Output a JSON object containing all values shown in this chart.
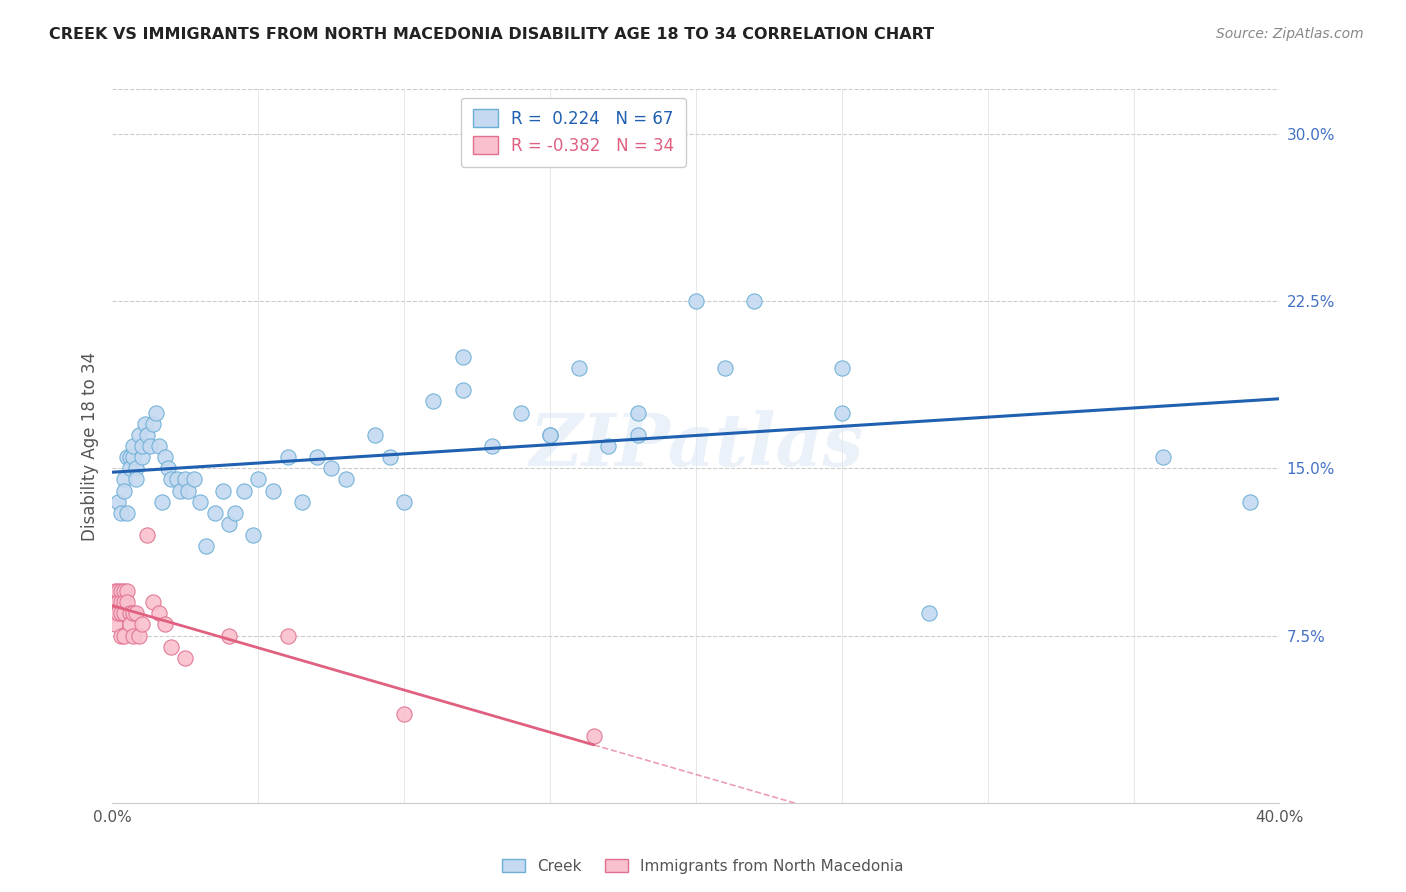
{
  "title": "CREEK VS IMMIGRANTS FROM NORTH MACEDONIA DISABILITY AGE 18 TO 34 CORRELATION CHART",
  "source": "Source: ZipAtlas.com",
  "ylabel": "Disability Age 18 to 34",
  "xlim": [
    0.0,
    0.4
  ],
  "ylim": [
    0.0,
    0.32
  ],
  "yticks_right": [
    0.075,
    0.15,
    0.225,
    0.3
  ],
  "ytick_right_labels": [
    "7.5%",
    "15.0%",
    "22.5%",
    "30.0%"
  ],
  "legend_creek_R": "0.224",
  "legend_creek_N": "67",
  "legend_nm_R": "-0.382",
  "legend_nm_N": "34",
  "creek_color": "#c5d9f0",
  "creek_edge": "#6baed6",
  "nm_color": "#f9c0ce",
  "nm_edge": "#e07090",
  "creek_line_color": "#2060b0",
  "nm_line_color": "#e06080",
  "watermark": "ZIPatlas",
  "creek_x": [
    0.002,
    0.003,
    0.004,
    0.004,
    0.005,
    0.005,
    0.006,
    0.006,
    0.007,
    0.007,
    0.008,
    0.008,
    0.009,
    0.01,
    0.01,
    0.011,
    0.012,
    0.013,
    0.014,
    0.015,
    0.016,
    0.017,
    0.018,
    0.019,
    0.02,
    0.022,
    0.023,
    0.025,
    0.026,
    0.028,
    0.03,
    0.032,
    0.035,
    0.038,
    0.04,
    0.042,
    0.045,
    0.048,
    0.05,
    0.055,
    0.06,
    0.065,
    0.07,
    0.075,
    0.08,
    0.09,
    0.095,
    0.1,
    0.11,
    0.12,
    0.13,
    0.14,
    0.15,
    0.16,
    0.17,
    0.18,
    0.2,
    0.22,
    0.25,
    0.28,
    0.12,
    0.15,
    0.18,
    0.21,
    0.25,
    0.36,
    0.39
  ],
  "creek_y": [
    0.135,
    0.13,
    0.145,
    0.14,
    0.155,
    0.13,
    0.155,
    0.15,
    0.155,
    0.16,
    0.15,
    0.145,
    0.165,
    0.155,
    0.16,
    0.17,
    0.165,
    0.16,
    0.17,
    0.175,
    0.16,
    0.135,
    0.155,
    0.15,
    0.145,
    0.145,
    0.14,
    0.145,
    0.14,
    0.145,
    0.135,
    0.115,
    0.13,
    0.14,
    0.125,
    0.13,
    0.14,
    0.12,
    0.145,
    0.14,
    0.155,
    0.135,
    0.155,
    0.15,
    0.145,
    0.165,
    0.155,
    0.135,
    0.18,
    0.2,
    0.16,
    0.175,
    0.165,
    0.195,
    0.16,
    0.165,
    0.225,
    0.225,
    0.195,
    0.085,
    0.185,
    0.165,
    0.175,
    0.195,
    0.175,
    0.155,
    0.135
  ],
  "nm_x": [
    0.001,
    0.001,
    0.001,
    0.001,
    0.002,
    0.002,
    0.002,
    0.003,
    0.003,
    0.003,
    0.003,
    0.004,
    0.004,
    0.004,
    0.004,
    0.005,
    0.005,
    0.006,
    0.006,
    0.007,
    0.007,
    0.008,
    0.009,
    0.01,
    0.012,
    0.014,
    0.016,
    0.018,
    0.02,
    0.025,
    0.04,
    0.06,
    0.1,
    0.165
  ],
  "nm_y": [
    0.095,
    0.09,
    0.085,
    0.08,
    0.095,
    0.09,
    0.085,
    0.095,
    0.09,
    0.085,
    0.075,
    0.095,
    0.09,
    0.085,
    0.075,
    0.095,
    0.09,
    0.085,
    0.08,
    0.085,
    0.075,
    0.085,
    0.075,
    0.08,
    0.12,
    0.09,
    0.085,
    0.08,
    0.07,
    0.065,
    0.075,
    0.075,
    0.04,
    0.03
  ]
}
